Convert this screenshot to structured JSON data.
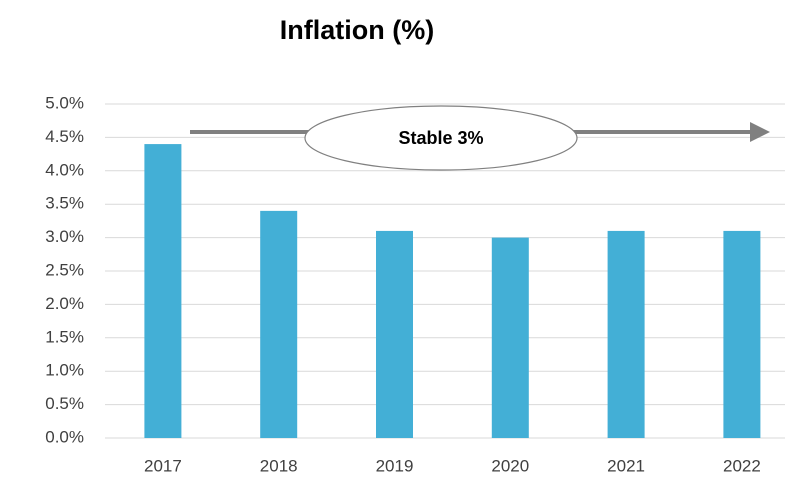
{
  "chart_data": {
    "type": "bar",
    "title": "Inflation (%)",
    "categories": [
      "2017",
      "2018",
      "2019",
      "2020",
      "2021",
      "2022"
    ],
    "values": [
      4.4,
      3.4,
      3.1,
      3.0,
      3.1,
      3.1
    ],
    "color": "#43afd6",
    "ylim": [
      0,
      5
    ],
    "yticks": [
      {
        "value": 0,
        "label": "0.0%"
      },
      {
        "value": 0.5,
        "label": "0.5%"
      },
      {
        "value": 1,
        "label": "1.0%"
      },
      {
        "value": 1.5,
        "label": "1.5%"
      },
      {
        "value": 2,
        "label": "2.0%"
      },
      {
        "value": 2.5,
        "label": "2.5%"
      },
      {
        "value": 3,
        "label": "3.0%"
      },
      {
        "value": 3.5,
        "label": "3.5%"
      },
      {
        "value": 4,
        "label": "4.0%"
      },
      {
        "value": 4.5,
        "label": "4.5%"
      },
      {
        "value": 5,
        "label": "5.0%"
      }
    ],
    "grid": true,
    "annotation": "Stable 3%"
  }
}
